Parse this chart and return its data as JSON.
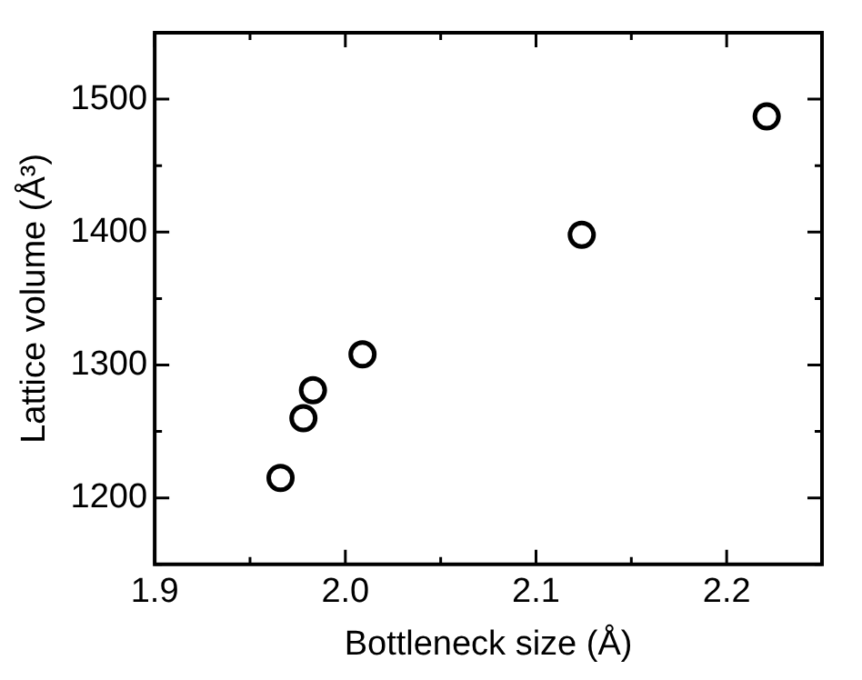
{
  "chart_data": {
    "type": "scatter",
    "xlabel": "Bottleneck size (Å)",
    "ylabel": "Lattice volume (Å³)",
    "xlim": [
      1.9,
      2.25
    ],
    "xticks": [
      {
        "value": 1.9,
        "label": "1.9"
      },
      {
        "value": 1.95,
        "label": null
      },
      {
        "value": 2.0,
        "label": "2.0"
      },
      {
        "value": 2.05,
        "label": null
      },
      {
        "value": 2.1,
        "label": "2.1"
      },
      {
        "value": 2.15,
        "label": null
      },
      {
        "value": 2.2,
        "label": "2.2"
      }
    ],
    "ylim": [
      1150,
      1550
    ],
    "yticks": [
      {
        "value": 1150,
        "label": null
      },
      1200,
      {
        "value": 1250,
        "label": null
      },
      1300,
      {
        "value": 1350,
        "label": null
      },
      1400,
      {
        "value": 1450,
        "label": null
      },
      1500
    ],
    "marker": "circle",
    "series": [
      {
        "color": "#000000",
        "x": [
          1.966,
          1.978,
          1.983,
          2.009,
          2.124,
          2.221
        ],
        "values": [
          1215,
          1260,
          1281,
          1308,
          1398,
          1487
        ]
      }
    ]
  }
}
